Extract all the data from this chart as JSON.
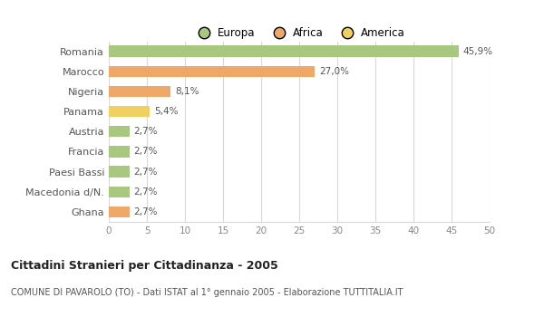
{
  "categories": [
    "Romania",
    "Marocco",
    "Nigeria",
    "Panama",
    "Austria",
    "Francia",
    "Paesi Bassi",
    "Macedonia d/N.",
    "Ghana"
  ],
  "values": [
    45.9,
    27.0,
    8.1,
    5.4,
    2.7,
    2.7,
    2.7,
    2.7,
    2.7
  ],
  "labels": [
    "45,9%",
    "27,0%",
    "8,1%",
    "5,4%",
    "2,7%",
    "2,7%",
    "2,7%",
    "2,7%",
    "2,7%"
  ],
  "colors": [
    "#a8c880",
    "#f0a868",
    "#f0a868",
    "#f0d060",
    "#a8c880",
    "#a8c880",
    "#a8c880",
    "#a8c880",
    "#f0a868"
  ],
  "legend": [
    {
      "label": "Europa",
      "color": "#a8c880"
    },
    {
      "label": "Africa",
      "color": "#f0a868"
    },
    {
      "label": "America",
      "color": "#f0d060"
    }
  ],
  "title": "Cittadini Stranieri per Cittadinanza - 2005",
  "subtitle": "COMUNE DI PAVAROLO (TO) - Dati ISTAT al 1° gennaio 2005 - Elaborazione TUTTITALIA.IT",
  "xlim": [
    0,
    50
  ],
  "xticks": [
    0,
    5,
    10,
    15,
    20,
    25,
    30,
    35,
    40,
    45,
    50
  ],
  "background_color": "#ffffff",
  "grid_color": "#d8d8d8",
  "bar_height": 0.55
}
